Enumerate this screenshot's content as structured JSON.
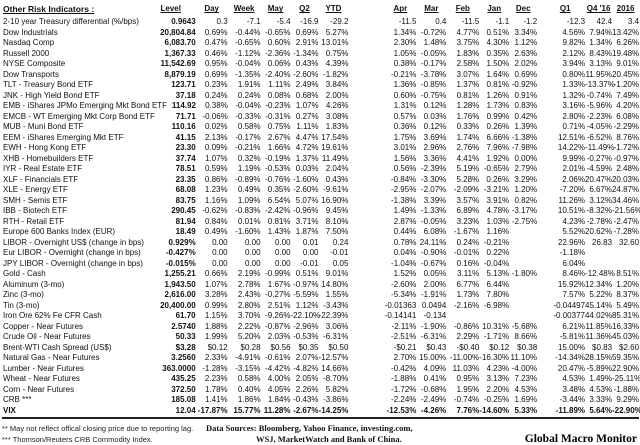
{
  "title": "Other Risk Indicators :",
  "columns": [
    "Level",
    "Day",
    "Week",
    "May",
    "Q2",
    "YTD",
    "Apr",
    "Mar",
    "Feb",
    "Jan",
    "Dec",
    "Q1",
    "Q4 '16",
    "2016"
  ],
  "rows": [
    {
      "label": "2-10 year Treasury differential (%/bps)",
      "values": [
        "0.9643",
        "0.3",
        "-7.1",
        "-5.4",
        "-16.9",
        "-29.2",
        "-11.5",
        "0.4",
        "-11.5",
        "-1.1",
        "-1.2",
        "-12.3",
        "42.4",
        "3.4"
      ]
    },
    {
      "label": "Dow Industrials",
      "values": [
        "20,804.84",
        "0.69%",
        "-0.44%",
        "-0.65%",
        "0.69%",
        "5.27%",
        "1.34%",
        "-0.72%",
        "4.77%",
        "0.51%",
        "3.34%",
        "4.56%",
        "7.94%",
        "13.42%"
      ]
    },
    {
      "label": "Nasdaq Comp",
      "values": [
        "6,083.70",
        "0.47%",
        "-0.65%",
        "0.60%",
        "2.91%",
        "13.01%",
        "2.30%",
        "1.48%",
        "3.75%",
        "4.30%",
        "1.12%",
        "9.82%",
        "1.34%",
        "6.26%"
      ]
    },
    {
      "label": "Russell 2000",
      "values": [
        "1,367.33",
        "0.46%",
        "-1.12%",
        "-2.36%",
        "-1.34%",
        "0.75%",
        "1.05%",
        "-0.05%",
        "1.83%",
        "0.35%",
        "2.63%",
        "2.12%",
        "8.43%",
        "19.48%"
      ]
    },
    {
      "label": "NYSE Composite",
      "values": [
        "11,542.69",
        "0.95%",
        "-0.04%",
        "0.06%",
        "0.43%",
        "4.39%",
        "0.38%",
        "-0.17%",
        "2.58%",
        "1.50%",
        "2.02%",
        "3.94%",
        "3.13%",
        "9.01%"
      ]
    },
    {
      "label": "Dow Transports",
      "values": [
        "8,879.19",
        "0.69%",
        "-1.35%",
        "-2.40%",
        "-2.60%",
        "-1.82%",
        "-0.21%",
        "-3.78%",
        "3.07%",
        "1.64%",
        "0.69%",
        "0.80%",
        "11.95%",
        "20.45%"
      ]
    },
    {
      "label": "TLT - Treasury Bond ETF",
      "values": [
        "123.71",
        "0.23%",
        "1.91%",
        "1.11%",
        "2.49%",
        "3.84%",
        "1.36%",
        "-0.85%",
        "1.37%",
        "0.81%",
        "-0.92%",
        "1.33%",
        "-13.37%",
        "-1.20%"
      ]
    },
    {
      "label": "JNK - High Yield Bond ETF",
      "values": [
        "37.18",
        "0.24%",
        "0.24%",
        "0.08%",
        "0.68%",
        "2.00%",
        "0.60%",
        "-0.75%",
        "0.81%",
        "1.26%",
        "0.91%",
        "1.32%",
        "-0.74%",
        "7.49%"
      ]
    },
    {
      "label": "EMB - iShares JPMo Emerging Mkt Bond ETF",
      "values": [
        "114.92",
        "0.38%",
        "-0.04%",
        "-0.23%",
        "1.07%",
        "4.26%",
        "1.31%",
        "0.12%",
        "1.28%",
        "1.73%",
        "0.83%",
        "3.16%",
        "-5.96%",
        "4.20%"
      ]
    },
    {
      "label": "EMCB - WT Emerging Mkt Corp Bond ETF",
      "values": [
        "71.71",
        "-0.06%",
        "-0.33%",
        "-0.31%",
        "0.27%",
        "3.08%",
        "0.57%",
        "0.03%",
        "1.76%",
        "0.99%",
        "0.42%",
        "2.80%",
        "-2.23%",
        "6.08%"
      ]
    },
    {
      "label": "MUB - Muni Bond ETF",
      "values": [
        "110.16",
        "0.02%",
        "0.58%",
        "0.75%",
        "1.11%",
        "1.83%",
        "0.36%",
        "0.12%",
        "0.33%",
        "0.26%",
        "1.39%",
        "0.71%",
        "-4.05%",
        "-2.29%"
      ]
    },
    {
      "label": "EEM - iShares Emerging Mkt ETF",
      "values": [
        "41.15",
        "2.13%",
        "-0.17%",
        "2.67%",
        "4.47%",
        "17.54%",
        "1.75%",
        "3.69%",
        "1.74%",
        "6.66%",
        "-1.38%",
        "12.51%",
        "-6.52%",
        "8.76%"
      ]
    },
    {
      "label": "EWH - Hong Kong ETF",
      "values": [
        "23.30",
        "0.09%",
        "-0.21%",
        "1.66%",
        "4.72%",
        "19.61%",
        "3.01%",
        "2.96%",
        "2.76%",
        "7.96%",
        "-7.98%",
        "14.22%",
        "-11.49%",
        "-1.72%"
      ]
    },
    {
      "label": "XHB - Homebuilders ETF",
      "values": [
        "37.74",
        "1.07%",
        "0.32%",
        "-0.19%",
        "1.37%",
        "11.49%",
        "1.56%",
        "3.36%",
        "4.41%",
        "1.92%",
        "0.00%",
        "9.99%",
        "-0.27%",
        "-0.97%"
      ]
    },
    {
      "label": "IYR - Real Estate ETF",
      "values": [
        "78.51",
        "0.59%",
        "1.19%",
        "-0.53%",
        "0.03%",
        "2.04%",
        "0.56%",
        "-2.39%",
        "5.19%",
        "-0.65%",
        "2.79%",
        "2.01%",
        "-4.59%",
        "2.48%"
      ]
    },
    {
      "label": "XLF - Financials ETF",
      "values": [
        "23.35",
        "0.86%",
        "-0.89%",
        "-0.76%",
        "-1.60%",
        "0.43%",
        "-0.84%",
        "-3.30%",
        "5.28%",
        "0.26%",
        "3.29%",
        "2.06%",
        "20.47%",
        "20.03%"
      ]
    },
    {
      "label": "XLE - Energy ETF",
      "values": [
        "68.08",
        "1.23%",
        "0.49%",
        "0.35%",
        "-2.60%",
        "-9.61%",
        "-2.95%",
        "-2.07%",
        "-2.09%",
        "-3.21%",
        "1.20%",
        "-7.20%",
        "6.67%",
        "24.87%"
      ]
    },
    {
      "label": "SMH - Semis ETF",
      "values": [
        "83.75",
        "1.16%",
        "1.09%",
        "6.54%",
        "5.07%",
        "16.90%",
        "-1.38%",
        "3.39%",
        "3.57%",
        "3.91%",
        "0.82%",
        "11.26%",
        "3.12%",
        "34.46%"
      ]
    },
    {
      "label": "IBB - Biotech ETF",
      "values": [
        "290.45",
        "-0.62%",
        "-0.83%",
        "-2.42%",
        "-0.96%",
        "9.45%",
        "1.49%",
        "-1.33%",
        "6.89%",
        "4.78%",
        "-3.17%",
        "10.51%",
        "-8.32%",
        "-21.56%"
      ]
    },
    {
      "label": "RTH - Retail ETF",
      "values": [
        "81.94",
        "0.84%",
        "0.01%",
        "0.81%",
        "3.71%",
        "8.10%",
        "2.87%",
        "-0.05%",
        "3.23%",
        "1.03%",
        "-2.75%",
        "4.23%",
        "-2.78%",
        "-2.47%"
      ]
    },
    {
      "label": "Europe 600 Banks Index (EUR)",
      "values": [
        "18.49",
        "0.49%",
        "-1.60%",
        "1.43%",
        "1.87%",
        "7.50%",
        "0.44%",
        "6.08%",
        "-1.67%",
        "1.16%",
        "",
        "5.52%",
        "20.62%",
        "-7.28%"
      ]
    },
    {
      "label": "LIBOR - Overnight US$ (change in bps)",
      "values": [
        "0.929%",
        "0.00",
        "0.00",
        "0.00",
        "0.01",
        "0.24",
        "0.78%",
        "24.11%",
        "0.24%",
        "-0.21%",
        "",
        "22.96%",
        "26.83",
        "32.60"
      ]
    },
    {
      "label": "Eur LIBOR - Overnight (change in bps)",
      "values": [
        "-0.427%",
        "0.00",
        "0.00",
        "0.00",
        "0.00",
        "-0.01",
        "0.04%",
        "-0.90%",
        "-0.01%",
        "0.22%",
        "",
        "-1.18%",
        "",
        ""
      ]
    },
    {
      "label": "JPY LIBOR - Overnight (change in bps)",
      "values": [
        "-0.015%",
        "0.00",
        "0.00",
        "0.00",
        "-0.01",
        "0.05",
        "-1.04%",
        "-0.67%",
        "0.16%",
        "-0.04%",
        "",
        "6.04%",
        "",
        ""
      ]
    },
    {
      "label": "Gold - Cash",
      "values": [
        "1,255.21",
        "0.66%",
        "2.19%",
        "-0.99%",
        "0.51%",
        "9.01%",
        "1.52%",
        "0.05%",
        "3.11%",
        "5.13%",
        "-1.80%",
        "8.46%",
        "-12.48%",
        "8.51%"
      ]
    },
    {
      "label": "Aluminum (3-mo)",
      "values": [
        "1,943.50",
        "1.07%",
        "2.78%",
        "1.67%",
        "-0.97%",
        "14.80%",
        "-2.60%",
        "2.00%",
        "6.77%",
        "6.44%",
        "",
        "15.92%",
        "12.34%",
        "1.20%"
      ]
    },
    {
      "label": "Zinc (3-mo)",
      "values": [
        "2,616.00",
        "3.28%",
        "2.43%",
        "-0.27%",
        "-5.59%",
        "1.55%",
        "-5.34%",
        "-1.91%",
        "1.73%",
        "7.80%",
        "",
        "7.57%",
        "5.22%",
        "8.37%"
      ]
    },
    {
      "label": "Tin (3-mo)",
      "values": [
        "20,400.00",
        "0.99%",
        "2.80%",
        "2.51%",
        "1.12%",
        "-3.43%",
        "-0.01363",
        "0.0494",
        "-2.16%",
        "-6.98%",
        "",
        "-0.04497",
        "45.14%",
        "5.49%"
      ]
    },
    {
      "label": "Iron Ore 62% Fe CFR Cash",
      "values": [
        "61.70",
        "1.15%",
        "3.70%",
        "-9.26%",
        "-22.10%",
        "-22.39%",
        "-0.14141",
        "-0.134",
        "",
        "",
        "",
        "-0.00377",
        "44.02%",
        "85.31%"
      ]
    },
    {
      "label": "Copper - Near Futures",
      "values": [
        "2.5740",
        "1.88%",
        "2.22%",
        "-0.87%",
        "-2.96%",
        "3.06%",
        "-2.11%",
        "-1.90%",
        "-0.86%",
        "10.31%",
        "-5.68%",
        "6.21%",
        "11.85%",
        "16.33%"
      ]
    },
    {
      "label": "Crude Oil - Near Futures",
      "values": [
        "50.33",
        "1.99%",
        "5.20%",
        "2.03%",
        "-0.53%",
        "-6.31%",
        "-2.51%",
        "-6.31%",
        "2.29%",
        "-1.71%",
        "8.66%",
        "-5.81%",
        "11.36%",
        "45.03%"
      ]
    },
    {
      "label": "Brent-WTI Cash Spread (US$)",
      "values": [
        "$3.28",
        "$0.12",
        "$0.28",
        "$0.56",
        "$0.35",
        "$0.50",
        "-$0.21",
        "$0.43",
        "-$0.40",
        "$0.12",
        "$0.38",
        "15.00%",
        "$0.83",
        "$2.60"
      ]
    },
    {
      "label": "Natural Gas - Near Futures",
      "values": [
        "3.2560",
        "2.33%",
        "-4.91%",
        "-0.61%",
        "2.07%",
        "-12.57%",
        "2.70%",
        "15.00%",
        "-11.00%",
        "-16.30%",
        "11.10%",
        "-14.34%",
        "28.15%",
        "59.35%"
      ]
    },
    {
      "label": "Lumber - Near Futures",
      "values": [
        "363.0000",
        "-1.28%",
        "-3.15%",
        "-4.42%",
        "-4.82%",
        "14.66%",
        "-0.42%",
        "4.09%",
        "11.03%",
        "4.23%",
        "-4.00%",
        "20.47%",
        "-5.89%",
        "22.90%"
      ]
    },
    {
      "label": "Wheat - Near Futures",
      "values": [
        "435.25",
        "2.23%",
        "0.58%",
        "4.00%",
        "2.05%",
        "-8.70%",
        "-1.88%",
        "0.41%",
        "0.95%",
        "3.13%",
        "7.23%",
        "4.53%",
        "1.49%",
        "-25.11%"
      ]
    },
    {
      "label": "Corn - Near Futures",
      "values": [
        "372.50",
        "1.78%",
        "0.40%",
        "4.05%",
        "2.26%",
        "5.82%",
        "-1.72%",
        "-0.68%",
        "1.95%",
        "2.20%",
        "4.53%",
        "3.48%",
        "4.53%",
        "-1.88%"
      ]
    },
    {
      "label": "CRB ***",
      "values": [
        "185.08",
        "1.41%",
        "1.86%",
        "1.84%",
        "-0.43%",
        "-3.86%",
        "-2.24%",
        "-2.49%",
        "-0.74%",
        "-0.25%",
        "1.69%",
        "-3.44%",
        "3.33%",
        "9.29%"
      ]
    },
    {
      "label": "VIX",
      "bold": true,
      "values": [
        "12.04",
        "-17.87%",
        "15.77%",
        "11.28%",
        "-2.67%",
        "-14.25%",
        "-12.53%",
        "-4.26%",
        "7.76%",
        "-14.60%",
        "5.33%",
        "-11.89%",
        "5.64%",
        "-22.90%"
      ]
    }
  ],
  "footer": {
    "note_reporting": "**  May not reflect offical closing price due to reporting lag.",
    "note_crb": "*** Thomson/Reuters CRB Commodity Index.",
    "sources_label": "Data Sources:",
    "sources_line1": "Bloomberg,  Yahoo Finance, investing.com,",
    "sources_line2": "WSJ, MarketWatch and Bank of China.",
    "brand": "Global Macro Monitor"
  }
}
